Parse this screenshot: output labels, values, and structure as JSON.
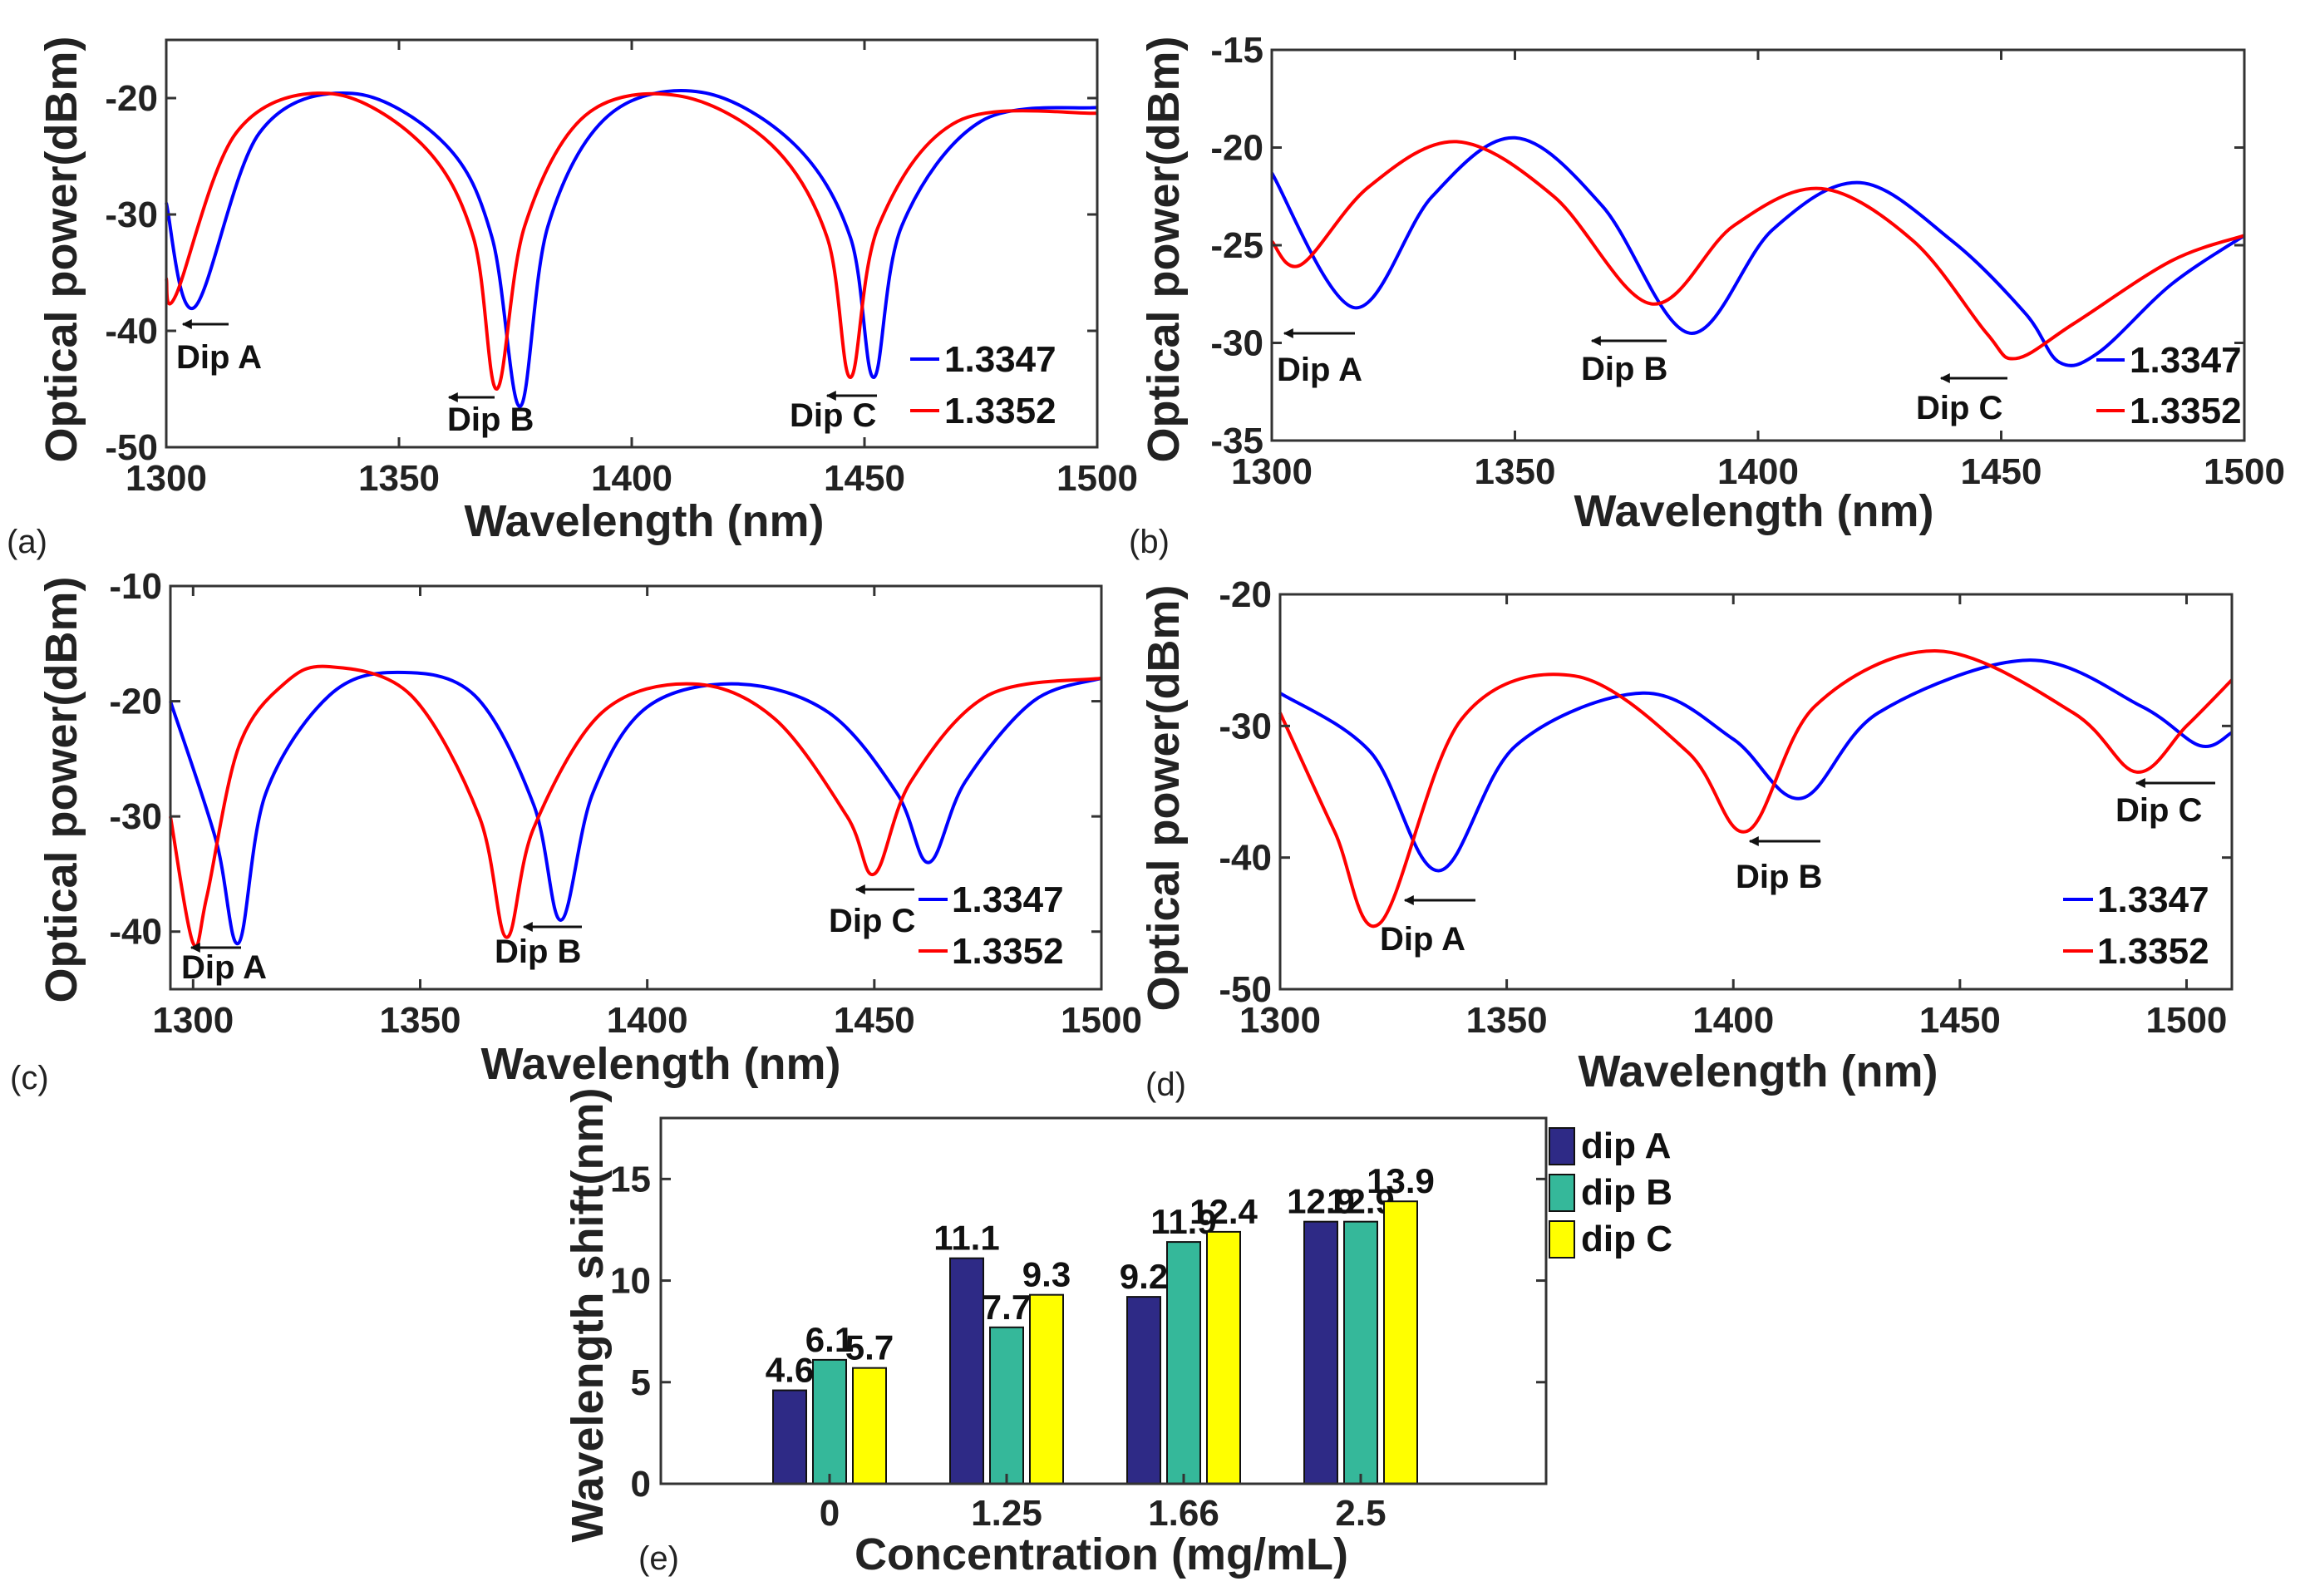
{
  "colors": {
    "series1": "#0000ff",
    "series2": "#ff0000",
    "dipA": "#2e2a86",
    "dipB": "#35b89a",
    "dipC": "#ffff00"
  },
  "chart_data": [
    {
      "type": "line",
      "panel_label": "(a)",
      "xlabel": "Wavelength (nm)",
      "ylabel": "Optical power(dBm)",
      "xlim": [
        1300,
        1500
      ],
      "ylim": [
        -50,
        -15
      ],
      "xticks": [
        "1300",
        "1350",
        "1400",
        "1450",
        "1500"
      ],
      "yticks": [
        "-50",
        "-40",
        "-30",
        "-20"
      ],
      "legend": [
        "1.3347",
        "1.3352"
      ],
      "annotations": [
        "Dip A",
        "Dip B",
        "Dip C"
      ],
      "series": [
        {
          "name": "1.3347",
          "x": [
            1300,
            1306,
            1320,
            1340,
            1360,
            1370,
            1376,
            1382,
            1395,
            1415,
            1435,
            1447,
            1452,
            1458,
            1475,
            1500
          ],
          "y": [
            -29,
            -38,
            -23,
            -19.6,
            -24,
            -32,
            -46.5,
            -31,
            -21.5,
            -19.5,
            -24,
            -32,
            -44,
            -31,
            -22,
            -20.8
          ]
        },
        {
          "name": "1.3352",
          "x": [
            1300,
            1302,
            1315,
            1335,
            1355,
            1366,
            1371,
            1377,
            1390,
            1410,
            1430,
            1442,
            1447,
            1453,
            1470,
            1500
          ],
          "y": [
            -35.5,
            -37,
            -23,
            -19.6,
            -24,
            -32,
            -45,
            -31,
            -21.5,
            -19.8,
            -24,
            -32,
            -44,
            -31,
            -22,
            -21.3
          ]
        }
      ]
    },
    {
      "type": "line",
      "panel_label": "(b)",
      "xlabel": "Wavelength (nm)",
      "ylabel": "Optical power(dBm)",
      "xlim": [
        1300,
        1500
      ],
      "ylim": [
        -35,
        -15
      ],
      "xticks": [
        "1300",
        "1350",
        "1400",
        "1450",
        "1500"
      ],
      "yticks": [
        "-35",
        "-30",
        "-25",
        "-20",
        "-15"
      ],
      "legend": [
        "1.3347",
        "1.3352"
      ],
      "annotations": [
        "Dip A",
        "Dip B",
        "Dip C"
      ],
      "series": [
        {
          "name": "1.3347",
          "x": [
            1300,
            1317,
            1333,
            1350,
            1368,
            1386,
            1403,
            1421,
            1440,
            1455,
            1462,
            1470,
            1485,
            1500
          ],
          "y": [
            -21.3,
            -28.2,
            -22.5,
            -19.5,
            -23,
            -29.5,
            -24.2,
            -21.8,
            -24.8,
            -28.5,
            -31,
            -30.5,
            -27,
            -24.5
          ]
        },
        {
          "name": "1.3352",
          "x": [
            1300,
            1306,
            1320,
            1338,
            1358,
            1378,
            1395,
            1413,
            1432,
            1447,
            1453,
            1465,
            1485,
            1500
          ],
          "y": [
            -24.8,
            -26,
            -22,
            -19.7,
            -22.5,
            -28,
            -24,
            -22.1,
            -24.8,
            -29.5,
            -30.8,
            -29,
            -25.8,
            -24.5
          ]
        }
      ]
    },
    {
      "type": "line",
      "panel_label": "(c)",
      "xlabel": "Wavelength (nm)",
      "ylabel": "Optical power(dBm)",
      "xlim": [
        1295,
        1500
      ],
      "ylim": [
        -45,
        -10
      ],
      "xticks": [
        "1300",
        "1350",
        "1400",
        "1450",
        "1500"
      ],
      "yticks": [
        "-40",
        "-30",
        "-20",
        "-10"
      ],
      "legend": [
        "1.3347",
        "1.3352"
      ],
      "annotations": [
        "Dip A",
        "Dip B",
        "Dip C"
      ],
      "series": [
        {
          "name": "1.3347",
          "x": [
            1295,
            1305,
            1310,
            1316,
            1330,
            1345,
            1362,
            1375,
            1381,
            1388,
            1400,
            1420,
            1440,
            1455,
            1462,
            1470,
            1485,
            1500
          ],
          "y": [
            -20,
            -32,
            -41,
            -28,
            -19.5,
            -17.5,
            -19.5,
            -29,
            -39,
            -28,
            -20.5,
            -18.5,
            -21,
            -28,
            -34,
            -27,
            -20,
            -18
          ]
        },
        {
          "name": "1.3352",
          "x": [
            1295,
            1300,
            1303,
            1310,
            1320,
            1330,
            1348,
            1363,
            1369,
            1375,
            1390,
            1410,
            1428,
            1444,
            1450,
            1458,
            1475,
            1500
          ],
          "y": [
            -30,
            -41,
            -37,
            -24,
            -18.5,
            -17,
            -19.5,
            -30,
            -40.5,
            -31,
            -21,
            -18.5,
            -21.5,
            -30,
            -35,
            -27,
            -19.5,
            -18
          ]
        }
      ]
    },
    {
      "type": "line",
      "panel_label": "(d)",
      "xlabel": "Wavelength (nm)",
      "ylabel": "Optical power(dBm)",
      "xlim": [
        1300,
        1510
      ],
      "ylim": [
        -50,
        -20
      ],
      "xticks": [
        "1300",
        "1350",
        "1400",
        "1450",
        "1500"
      ],
      "yticks": [
        "-50",
        "-40",
        "-30",
        "-20"
      ],
      "legend": [
        "1.3347",
        "1.3352"
      ],
      "annotations": [
        "Dip A",
        "Dip B",
        "Dip C"
      ],
      "series": [
        {
          "name": "1.3347",
          "x": [
            1300,
            1320,
            1335,
            1352,
            1380,
            1400,
            1415,
            1432,
            1465,
            1490,
            1503,
            1510
          ],
          "y": [
            -27.5,
            -32,
            -41,
            -31.5,
            -27.5,
            -31,
            -35.5,
            -29,
            -25,
            -28.5,
            -31.5,
            -30.5
          ]
        },
        {
          "name": "1.3352",
          "x": [
            1300,
            1312,
            1322,
            1340,
            1365,
            1390,
            1403,
            1418,
            1445,
            1475,
            1489,
            1500,
            1510
          ],
          "y": [
            -29,
            -38,
            -45,
            -29.5,
            -26.2,
            -32,
            -38,
            -28.5,
            -24.3,
            -29,
            -33.5,
            -30,
            -26.5
          ]
        }
      ]
    },
    {
      "type": "bar",
      "panel_label": "(e)",
      "xlabel": "Concentration (mg/mL)",
      "ylabel": "Wavelength shift(nm)",
      "ylim": [
        0,
        18
      ],
      "yticks": [
        "0",
        "5",
        "10",
        "15"
      ],
      "categories": [
        "0",
        "1.25",
        "1.66",
        "2.5"
      ],
      "series": [
        {
          "name": "dip A",
          "values": [
            4.6,
            11.1,
            9.2,
            12.9
          ],
          "labels": [
            "4.6",
            "11.1",
            "9.2",
            "12.9"
          ]
        },
        {
          "name": "dip B",
          "values": [
            6.1,
            7.7,
            11.9,
            12.9
          ],
          "labels": [
            "6.1",
            "7.7",
            "11.9",
            "12.9"
          ]
        },
        {
          "name": "dip C",
          "values": [
            5.7,
            9.3,
            12.4,
            13.9
          ],
          "labels": [
            "5.7",
            "9.3",
            "12.4",
            "13.9"
          ]
        }
      ]
    }
  ]
}
